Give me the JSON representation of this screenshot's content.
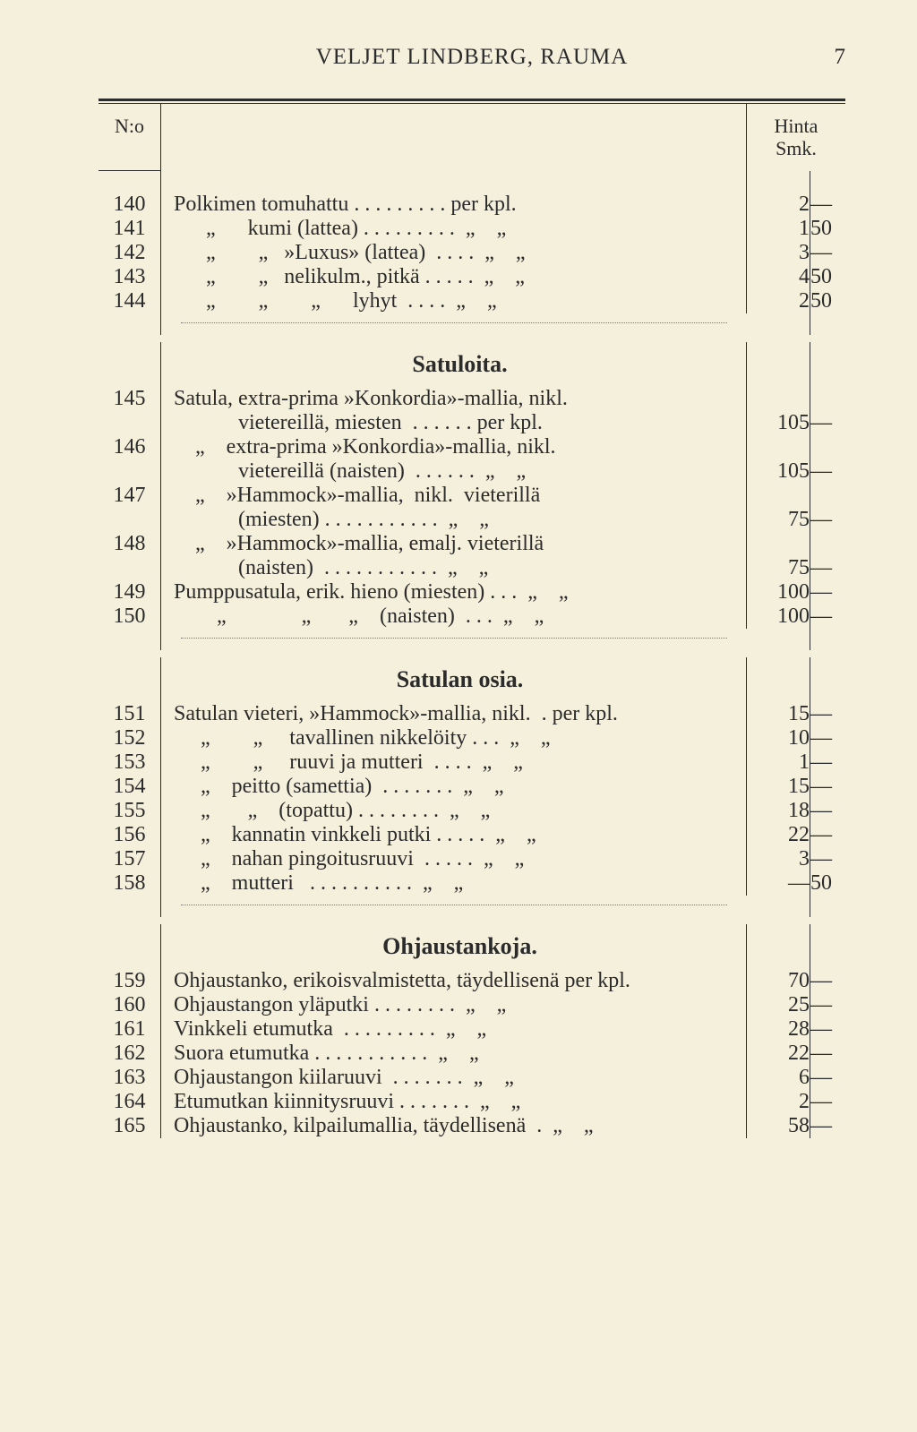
{
  "header": {
    "title": "VELJET LINDBERG, RAUMA",
    "pagenum": "7"
  },
  "cols": {
    "no": "N:o",
    "price": "Hinta\nSmk."
  },
  "polkimen": [
    {
      "no": "140",
      "desc": "Polkimen tomuhattu . . . . . . . . . per kpl.",
      "p1": "2",
      "p2": "—"
    },
    {
      "no": "141",
      "desc": "      „      kumi (lattea) . . . . . . . . .  „    „",
      "p1": "1",
      "p2": "50"
    },
    {
      "no": "142",
      "desc": "      „        „   »Luxus» (lattea)  . . . .  „    „",
      "p1": "3",
      "p2": "—"
    },
    {
      "no": "143",
      "desc": "      „        „   nelikulm., pitkä . . . . .  „    „",
      "p1": "4",
      "p2": "50"
    },
    {
      "no": "144",
      "desc": "      „        „        „      lyhyt  . . . .  „    „",
      "p1": "2",
      "p2": "50"
    }
  ],
  "satuloita_title": "Satuloita.",
  "satuloita": [
    {
      "no": "145",
      "desc": "Satula, extra-prima »Konkordia»-mallia, nikl.",
      "p1": "",
      "p2": ""
    },
    {
      "no": "",
      "desc": "            vietereillä, miesten  . . . . . . per kpl.",
      "p1": "105",
      "p2": "—"
    },
    {
      "no": "146",
      "desc": "    „    extra-prima »Konkordia»-mallia, nikl.",
      "p1": "",
      "p2": ""
    },
    {
      "no": "",
      "desc": "            vietereillä (naisten)  . . . . . .  „    „",
      "p1": "105",
      "p2": "—"
    },
    {
      "no": "147",
      "desc": "    „    »Hammock»-mallia,  nikl.  vieterillä",
      "p1": "",
      "p2": ""
    },
    {
      "no": "",
      "desc": "            (miesten) . . . . . . . . . . .  „    „",
      "p1": "75",
      "p2": "—"
    },
    {
      "no": "148",
      "desc": "    „    »Hammock»-mallia, emalj. vieterillä",
      "p1": "",
      "p2": ""
    },
    {
      "no": "",
      "desc": "            (naisten)  . . . . . . . . . . .  „    „",
      "p1": "75",
      "p2": "—"
    },
    {
      "no": "149",
      "desc": "Pumppusatula, erik. hieno (miesten) . . .  „    „",
      "p1": "100",
      "p2": "—"
    },
    {
      "no": "150",
      "desc": "        „              „       „    (naisten)  . . .  „    „",
      "p1": "100",
      "p2": "—"
    }
  ],
  "satulan_title": "Satulan osia.",
  "satulan": [
    {
      "no": "151",
      "desc": "Satulan vieteri, »Hammock»-mallia, nikl.  . per kpl.",
      "p1": "15",
      "p2": "—"
    },
    {
      "no": "152",
      "desc": "     „        „     tavallinen nikkelöity . . .  „    „",
      "p1": "10",
      "p2": "—"
    },
    {
      "no": "153",
      "desc": "     „        „     ruuvi ja mutteri  . . . .  „    „",
      "p1": "1",
      "p2": "—"
    },
    {
      "no": "154",
      "desc": "     „    peitto (samettia)  . . . . . . .  „    „",
      "p1": "15",
      "p2": "—"
    },
    {
      "no": "155",
      "desc": "     „       „    (topattu) . . . . . . . .  „    „",
      "p1": "18",
      "p2": "—"
    },
    {
      "no": "156",
      "desc": "     „    kannatin vinkkeli putki . . . . .  „    „",
      "p1": "22",
      "p2": "—"
    },
    {
      "no": "157",
      "desc": "     „    nahan pingoitusruuvi  . . . . .  „    „",
      "p1": "3",
      "p2": "—"
    },
    {
      "no": "158",
      "desc": "     „    mutteri   . . . . . . . . . .  „    „",
      "p1": "—",
      "p2": "50"
    }
  ],
  "ohjaus_title": "Ohjaustankoja.",
  "ohjaus": [
    {
      "no": "159",
      "desc": "Ohjaustanko, erikoisvalmistetta, täydellisenä per kpl.",
      "p1": "70",
      "p2": "—"
    },
    {
      "no": "160",
      "desc": "Ohjaustangon yläputki . . . . . . . .  „    „",
      "p1": "25",
      "p2": "—"
    },
    {
      "no": "161",
      "desc": "Vinkkeli etumutka  . . . . . . . . .  „    „",
      "p1": "28",
      "p2": "—"
    },
    {
      "no": "162",
      "desc": "Suora etumutka . . . . . . . . . . .  „    „",
      "p1": "22",
      "p2": "—"
    },
    {
      "no": "163",
      "desc": "Ohjaustangon kiilaruuvi  . . . . . . .  „    „",
      "p1": "6",
      "p2": "—"
    },
    {
      "no": "164",
      "desc": "Etumutkan kiinnitysruuvi . . . . . . .  „    „",
      "p1": "2",
      "p2": "—"
    },
    {
      "no": "165",
      "desc": "Ohjaustanko, kilpailumallia, täydellisenä  .  „    „",
      "p1": "58",
      "p2": "—"
    }
  ]
}
